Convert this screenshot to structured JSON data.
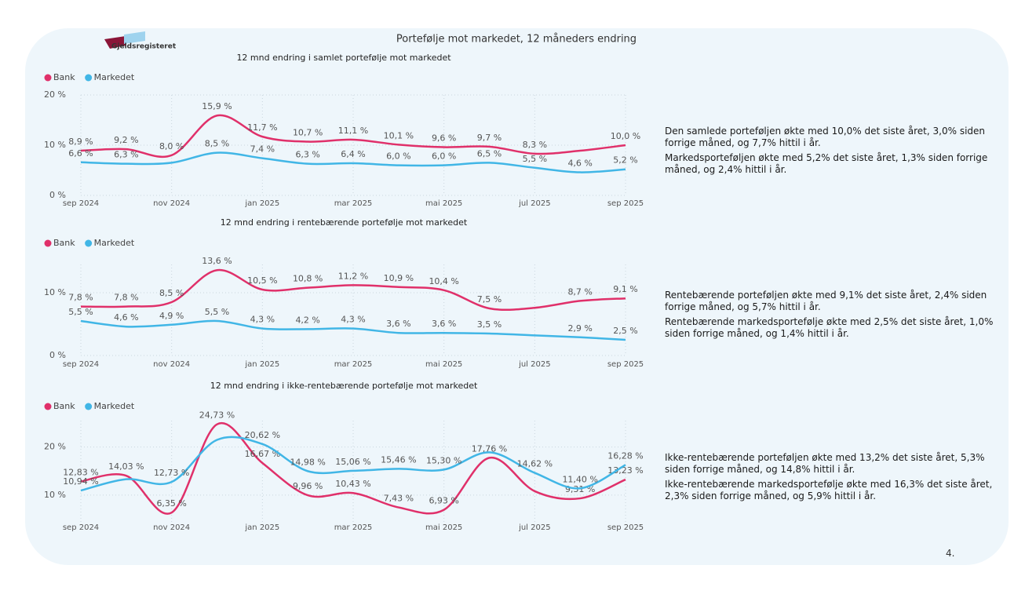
{
  "title": "Portefølje mot markedet, 12 måneders endring",
  "logo": "Gjeldsregisteret",
  "page_number": "4.",
  "chart_data": [
    {
      "type": "line",
      "title": "12 mnd endring i samlet portefølje mot markedet",
      "categories": [
        "sep 2024",
        null,
        "nov 2024",
        null,
        "jan 2025",
        null,
        "mar 2025",
        null,
        "mai 2025",
        null,
        "jul 2025",
        null,
        "sep 2025"
      ],
      "series": [
        {
          "name": "Bank",
          "color": "#e0306a",
          "values": [
            8.9,
            9.2,
            8.0,
            15.9,
            11.7,
            10.7,
            11.1,
            10.1,
            9.6,
            9.7,
            8.3,
            8.9,
            10.0
          ],
          "value_labels": [
            "8,9 %",
            "9,2 %",
            "8,0 %",
            "15,9 %",
            "11,7 %",
            "10,7 %",
            "11,1 %",
            "10,1 %",
            "9,6 %",
            "9,7 %",
            "8,3 %",
            null,
            "10,0 %"
          ]
        },
        {
          "name": "Markedet",
          "color": "#41b6e6",
          "values": [
            6.6,
            6.3,
            6.5,
            8.5,
            7.4,
            6.3,
            6.4,
            6.0,
            6.0,
            6.5,
            5.5,
            4.6,
            5.2
          ],
          "value_labels": [
            "6,6 %",
            "6,3 %",
            null,
            "8,5 %",
            "7,4 %",
            "6,3 %",
            "6,4 %",
            "6,0 %",
            "6,0 %",
            "6,5 %",
            "5,5 %",
            "4,6 %",
            "5,2 %"
          ]
        }
      ],
      "ylim": [
        0,
        20
      ],
      "yticks": [
        {
          "value": 0,
          "label": "0 %"
        },
        {
          "value": 10,
          "label": "10 %"
        },
        {
          "value": 20,
          "label": "20 %"
        }
      ],
      "grid": true,
      "annotations": [
        "Den samlede porteføljen økte med 10,0% det siste året, 3,0% siden forrige måned, og 7,7% hittil i år.",
        "Markedsporteføljen økte med 5,2% det siste året, 1,3% siden forrige måned, og 2,4% hittil i år."
      ]
    },
    {
      "type": "line",
      "title": "12 mnd endring i rentebærende portefølje mot markedet",
      "categories": [
        "sep 2024",
        null,
        "nov 2024",
        null,
        "jan 2025",
        null,
        "mar 2025",
        null,
        "mai 2025",
        null,
        "jul 2025",
        null,
        "sep 2025"
      ],
      "series": [
        {
          "name": "Bank",
          "color": "#e0306a",
          "values": [
            7.8,
            7.8,
            8.5,
            13.6,
            10.5,
            10.8,
            11.2,
            10.9,
            10.4,
            7.5,
            7.6,
            8.7,
            9.1
          ],
          "value_labels": [
            "7,8 %",
            "7,8 %",
            "8,5 %",
            "13,6 %",
            "10,5 %",
            "10,8 %",
            "11,2 %",
            "10,9 %",
            "10,4 %",
            "7,5 %",
            null,
            "8,7 %",
            "9,1 %"
          ]
        },
        {
          "name": "Markedet",
          "color": "#41b6e6",
          "values": [
            5.5,
            4.6,
            4.9,
            5.5,
            4.3,
            4.2,
            4.3,
            3.6,
            3.6,
            3.5,
            3.2,
            2.9,
            2.5
          ],
          "value_labels": [
            "5,5 %",
            "4,6 %",
            "4,9 %",
            "5,5 %",
            "4,3 %",
            "4,2 %",
            "4,3 %",
            "3,6 %",
            "3,6 %",
            "3,5 %",
            null,
            "2,9 %",
            "2,5 %"
          ]
        }
      ],
      "ylim": [
        0,
        14.5
      ],
      "yticks": [
        {
          "value": 0,
          "label": "0 %"
        },
        {
          "value": 10,
          "label": "10 %"
        }
      ],
      "grid": true,
      "annotations": [
        "Rentebærende porteføljen økte med 9,1% det siste året, 2,4% siden forrige måned, og 5,7% hittil i år.",
        "Rentebærende markedsportefølje økte med 2,5% det siste året, 1,0% siden forrige måned, og 1,4% hittil i år."
      ]
    },
    {
      "type": "line",
      "title": "12 mnd endring i ikke-rentebærende portefølje mot markedet",
      "categories": [
        "sep 2024",
        null,
        "nov 2024",
        null,
        "jan 2025",
        null,
        "mar 2025",
        null,
        "mai 2025",
        null,
        "jul 2025",
        null,
        "sep 2025"
      ],
      "series": [
        {
          "name": "Bank",
          "color": "#e0306a",
          "values": [
            12.83,
            14.03,
            6.35,
            24.73,
            16.67,
            9.96,
            10.43,
            7.43,
            6.93,
            17.76,
            10.8,
            9.31,
            13.23
          ],
          "value_labels": [
            "12,83 %",
            "14,03 %",
            "6,35 %",
            "24,73 %",
            "16,67 %",
            "9,96 %",
            "10,43 %",
            "7,43 %",
            "6,93 %",
            "17,76 %",
            null,
            "9,31 %",
            "13,23 %"
          ]
        },
        {
          "name": "Markedet",
          "color": "#41b6e6",
          "values": [
            10.94,
            13.3,
            12.73,
            21.5,
            20.62,
            14.98,
            15.06,
            15.46,
            15.3,
            18.9,
            14.62,
            11.4,
            16.28
          ],
          "value_labels": [
            "10,94 %",
            null,
            "12,73 %",
            null,
            "20,62 %",
            "14,98 %",
            "15,06 %",
            "15,46 %",
            "15,30 %",
            null,
            "14,62 %",
            "11,40 %",
            "16,28 %"
          ]
        }
      ],
      "ylim": [
        3.5,
        25.5
      ],
      "yticks": [
        {
          "value": 10,
          "label": "10 %"
        },
        {
          "value": 20,
          "label": "20 %"
        }
      ],
      "grid": true,
      "annotations": [
        "Ikke-rentebærende porteføljen økte med 13,2% det siste året, 5,3% siden forrige måned, og 14,8% hittil i år.",
        "Ikke-rentebærende markedsportefølje økte med 16,3% det siste året, 2,3% siden forrige måned, og 5,9% hittil i år."
      ]
    }
  ]
}
